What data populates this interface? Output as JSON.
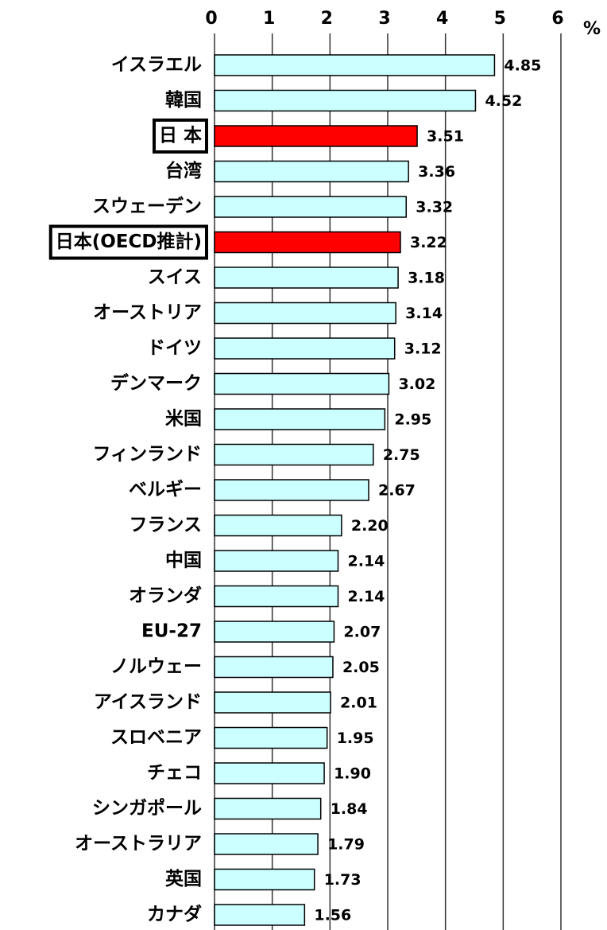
{
  "chart_data": {
    "type": "bar",
    "orientation": "horizontal",
    "unit_label": "%",
    "categories": [
      "イスラエル",
      "韓国",
      "日 本",
      "台湾",
      "スウェーデン",
      "日本(OECD推計)",
      "スイス",
      "オーストリア",
      "ドイツ",
      "デンマーク",
      "米国",
      "フィンランド",
      "ベルギー",
      "フランス",
      "中国",
      "オランダ",
      "EU-27",
      "ノルウェー",
      "アイスランド",
      "スロベニア",
      "チェコ",
      "シンガポール",
      "オーストラリア",
      "英国",
      "カナダ"
    ],
    "values": [
      4.85,
      4.52,
      3.51,
      3.36,
      3.32,
      3.22,
      3.18,
      3.14,
      3.12,
      3.02,
      2.95,
      2.75,
      2.67,
      2.2,
      2.14,
      2.14,
      2.07,
      2.05,
      2.01,
      1.95,
      1.9,
      1.84,
      1.79,
      1.73,
      1.56
    ],
    "value_labels": [
      "4.85",
      "4.52",
      "3.51",
      "3.36",
      "3.32",
      "3.22",
      "3.18",
      "3.14",
      "3.12",
      "3.02",
      "2.95",
      "2.75",
      "2.67",
      "2.20",
      "2.14",
      "2.14",
      "2.07",
      "2.05",
      "2.01",
      "1.95",
      "1.90",
      "1.84",
      "1.79",
      "1.73",
      "1.56"
    ],
    "base_color": "#ccffff",
    "colors": [
      "#ccffff",
      "#ccffff",
      "#ff0000",
      "#ccffff",
      "#ccffff",
      "#ff0000",
      "#ccffff",
      "#ccffff",
      "#ccffff",
      "#ccffff",
      "#ccffff",
      "#ccffff",
      "#ccffff",
      "#ccffff",
      "#ccffff",
      "#ccffff",
      "#ccffff",
      "#ccffff",
      "#ccffff",
      "#ccffff",
      "#ccffff",
      "#ccffff",
      "#ccffff",
      "#ccffff",
      "#ccffff"
    ],
    "xlim": [
      0,
      6
    ],
    "xticks": [
      0,
      1,
      2,
      3,
      4,
      5,
      6
    ],
    "grid": true
  }
}
